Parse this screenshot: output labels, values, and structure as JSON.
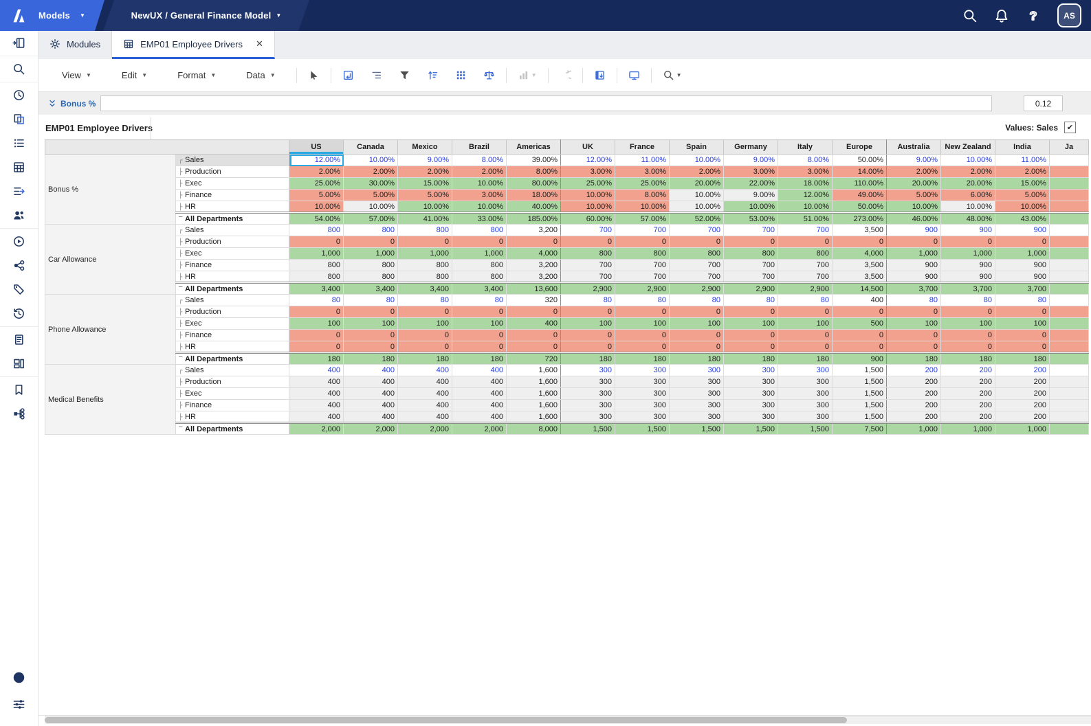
{
  "topbar": {
    "models_label": "Models",
    "model_name": "NewUX / General Finance Model",
    "icons": [
      "search",
      "notifications",
      "help"
    ],
    "avatar_initials": "AS"
  },
  "tabs": [
    {
      "label": "Modules",
      "icon": "gear",
      "active": false,
      "closable": false
    },
    {
      "label": "EMP01 Employee Drivers",
      "icon": "grid-table",
      "active": true,
      "closable": true
    }
  ],
  "sidebar": {
    "items": [
      {
        "name": "panel-toggle"
      },
      {
        "sep": true
      },
      {
        "name": "search"
      },
      {
        "sep": true
      },
      {
        "name": "recent"
      },
      {
        "name": "models"
      },
      {
        "name": "lists"
      },
      {
        "name": "modules"
      },
      {
        "name": "actions"
      },
      {
        "name": "users"
      },
      {
        "sep": true
      },
      {
        "name": "processes"
      },
      {
        "name": "source-models"
      },
      {
        "name": "tags"
      },
      {
        "name": "history"
      },
      {
        "sep": true
      },
      {
        "name": "notes"
      },
      {
        "name": "dashboards"
      },
      {
        "sep": true
      },
      {
        "name": "bookmarks"
      },
      {
        "name": "org-chart"
      }
    ],
    "bottom_items": [
      {
        "name": "info"
      },
      {
        "name": "settings-sliders"
      }
    ]
  },
  "toolbar": {
    "menus": [
      "View",
      "Edit",
      "Format",
      "Data"
    ],
    "tools": [
      {
        "name": "cursor",
        "tone": "dark"
      },
      {
        "sep": true
      },
      {
        "name": "pivot",
        "tone": "blue"
      },
      {
        "name": "outline",
        "tone": "slate"
      },
      {
        "name": "filter",
        "tone": "dark"
      },
      {
        "name": "sort",
        "tone": "blue"
      },
      {
        "name": "grid-cells",
        "tone": "blue"
      },
      {
        "name": "conditional-format",
        "tone": "blue"
      },
      {
        "sep": true
      },
      {
        "name": "chart",
        "tone": "disabled",
        "caret": true
      },
      {
        "sep": true
      },
      {
        "name": "undo",
        "tone": "disabled"
      },
      {
        "sep": true
      },
      {
        "name": "freeze-panes",
        "tone": "blue"
      },
      {
        "sep": true
      },
      {
        "name": "presentation",
        "tone": "blue"
      },
      {
        "sep": true
      },
      {
        "name": "search-grid",
        "tone": "dark",
        "caret": true
      }
    ]
  },
  "formula_bar": {
    "selector_label": "Bonus %",
    "input_value": "",
    "cell_value": "0.12"
  },
  "view": {
    "title": "EMP01 Employee Drivers",
    "values_label": "Values: Sales",
    "values_checked": "✔"
  },
  "grid": {
    "columns": [
      "US",
      "Canada",
      "Mexico",
      "Brazil",
      "Americas",
      "UK",
      "France",
      "Spain",
      "Germany",
      "Italy",
      "Europe",
      "Australia",
      "New Zealand",
      "India",
      "Ja"
    ],
    "selection": {
      "section": 0,
      "row": 0,
      "col": 0,
      "column": "US",
      "row_label": "Sales",
      "line_item": "Bonus %"
    },
    "sections": [
      {
        "group": "Bonus %",
        "rows": [
          {
            "label": "Sales",
            "values": [
              "12.00%",
              "10.00%",
              "9.00%",
              "8.00%",
              "39.00%",
              "12.00%",
              "11.00%",
              "10.00%",
              "9.00%",
              "8.00%",
              "50.00%",
              "9.00%",
              "10.00%",
              "11.00%",
              ""
            ],
            "bg": "wwwwwwwwwwwwwww",
            "fg": "bbbbkbbbbbkbbbk"
          },
          {
            "label": "Production",
            "values": [
              "2.00%",
              "2.00%",
              "2.00%",
              "2.00%",
              "8.00%",
              "3.00%",
              "3.00%",
              "2.00%",
              "3.00%",
              "3.00%",
              "14.00%",
              "2.00%",
              "2.00%",
              "2.00%",
              ""
            ],
            "bg": "rrrrrrrrrrrrrrr"
          },
          {
            "label": "Exec",
            "values": [
              "25.00%",
              "30.00%",
              "15.00%",
              "10.00%",
              "80.00%",
              "25.00%",
              "25.00%",
              "20.00%",
              "22.00%",
              "18.00%",
              "110.00%",
              "20.00%",
              "20.00%",
              "15.00%",
              ""
            ],
            "bg": "ggggggggggggggg"
          },
          {
            "label": "Finance",
            "values": [
              "5.00%",
              "5.00%",
              "5.00%",
              "3.00%",
              "18.00%",
              "10.00%",
              "8.00%",
              "10.00%",
              "9.00%",
              "12.00%",
              "49.00%",
              "5.00%",
              "6.00%",
              "5.00%",
              ""
            ],
            "bg": "rrrrrrreegrrrrr"
          },
          {
            "label": "HR",
            "values": [
              "10.00%",
              "10.00%",
              "10.00%",
              "10.00%",
              "40.00%",
              "10.00%",
              "10.00%",
              "10.00%",
              "10.00%",
              "10.00%",
              "50.00%",
              "10.00%",
              "10.00%",
              "10.00%",
              ""
            ],
            "bg": "regggrreggggerr"
          },
          {
            "label": "All Departments",
            "values": [
              "54.00%",
              "57.00%",
              "41.00%",
              "33.00%",
              "185.00%",
              "60.00%",
              "57.00%",
              "52.00%",
              "53.00%",
              "51.00%",
              "273.00%",
              "46.00%",
              "48.00%",
              "43.00%",
              ""
            ],
            "bg": "ggggggggggggggg"
          }
        ]
      },
      {
        "group": "Car Allowance",
        "rows": [
          {
            "label": "Sales",
            "values": [
              "800",
              "800",
              "800",
              "800",
              "3,200",
              "700",
              "700",
              "700",
              "700",
              "700",
              "3,500",
              "900",
              "900",
              "900",
              ""
            ],
            "bg": "wwwwwwwwwwwwwww",
            "fg": "bbbbkbbbbbkbbbk"
          },
          {
            "label": "Production",
            "values": [
              "0",
              "0",
              "0",
              "0",
              "0",
              "0",
              "0",
              "0",
              "0",
              "0",
              "0",
              "0",
              "0",
              "0",
              ""
            ],
            "bg": "rrrrrrrrrrrrrrr"
          },
          {
            "label": "Exec",
            "values": [
              "1,000",
              "1,000",
              "1,000",
              "1,000",
              "4,000",
              "800",
              "800",
              "800",
              "800",
              "800",
              "4,000",
              "1,000",
              "1,000",
              "1,000",
              ""
            ],
            "bg": "ggggggggggggggg"
          },
          {
            "label": "Finance",
            "values": [
              "800",
              "800",
              "800",
              "800",
              "3,200",
              "700",
              "700",
              "700",
              "700",
              "700",
              "3,500",
              "900",
              "900",
              "900",
              ""
            ],
            "bg": "eeeeeeeeeeeeeee"
          },
          {
            "label": "HR",
            "values": [
              "800",
              "800",
              "800",
              "800",
              "3,200",
              "700",
              "700",
              "700",
              "700",
              "700",
              "3,500",
              "900",
              "900",
              "900",
              ""
            ],
            "bg": "eeeeeeeeeeeeeee"
          },
          {
            "label": "All Departments",
            "values": [
              "3,400",
              "3,400",
              "3,400",
              "3,400",
              "13,600",
              "2,900",
              "2,900",
              "2,900",
              "2,900",
              "2,900",
              "14,500",
              "3,700",
              "3,700",
              "3,700",
              ""
            ],
            "bg": "ggggggggggggggg"
          }
        ]
      },
      {
        "group": "Phone Allowance",
        "rows": [
          {
            "label": "Sales",
            "values": [
              "80",
              "80",
              "80",
              "80",
              "320",
              "80",
              "80",
              "80",
              "80",
              "80",
              "400",
              "80",
              "80",
              "80",
              ""
            ],
            "bg": "wwwwwwwwwwwwwww",
            "fg": "bbbbkbbbbbkbbbk"
          },
          {
            "label": "Production",
            "values": [
              "0",
              "0",
              "0",
              "0",
              "0",
              "0",
              "0",
              "0",
              "0",
              "0",
              "0",
              "0",
              "0",
              "0",
              ""
            ],
            "bg": "rrrrrrrrrrrrrrr"
          },
          {
            "label": "Exec",
            "values": [
              "100",
              "100",
              "100",
              "100",
              "400",
              "100",
              "100",
              "100",
              "100",
              "100",
              "500",
              "100",
              "100",
              "100",
              ""
            ],
            "bg": "ggggggggggggggg"
          },
          {
            "label": "Finance",
            "values": [
              "0",
              "0",
              "0",
              "0",
              "0",
              "0",
              "0",
              "0",
              "0",
              "0",
              "0",
              "0",
              "0",
              "0",
              ""
            ],
            "bg": "rrrrrrrrrrrrrrr"
          },
          {
            "label": "HR",
            "values": [
              "0",
              "0",
              "0",
              "0",
              "0",
              "0",
              "0",
              "0",
              "0",
              "0",
              "0",
              "0",
              "0",
              "0",
              ""
            ],
            "bg": "rrrrrrrrrrrrrrr"
          },
          {
            "label": "All Departments",
            "values": [
              "180",
              "180",
              "180",
              "180",
              "720",
              "180",
              "180",
              "180",
              "180",
              "180",
              "900",
              "180",
              "180",
              "180",
              ""
            ],
            "bg": "ggggggggggggggg"
          }
        ]
      },
      {
        "group": "Medical Benefits",
        "rows": [
          {
            "label": "Sales",
            "values": [
              "400",
              "400",
              "400",
              "400",
              "1,600",
              "300",
              "300",
              "300",
              "300",
              "300",
              "1,500",
              "200",
              "200",
              "200",
              ""
            ],
            "bg": "wwwwwwwwwwwwwww",
            "fg": "bbbbkbbbbbkbbbk"
          },
          {
            "label": "Production",
            "values": [
              "400",
              "400",
              "400",
              "400",
              "1,600",
              "300",
              "300",
              "300",
              "300",
              "300",
              "1,500",
              "200",
              "200",
              "200",
              ""
            ],
            "bg": "eeeeeeeeeeeeeee"
          },
          {
            "label": "Exec",
            "values": [
              "400",
              "400",
              "400",
              "400",
              "1,600",
              "300",
              "300",
              "300",
              "300",
              "300",
              "1,500",
              "200",
              "200",
              "200",
              ""
            ],
            "bg": "eeeeeeeeeeeeeee"
          },
          {
            "label": "Finance",
            "values": [
              "400",
              "400",
              "400",
              "400",
              "1,600",
              "300",
              "300",
              "300",
              "300",
              "300",
              "1,500",
              "200",
              "200",
              "200",
              ""
            ],
            "bg": "eeeeeeeeeeeeeee"
          },
          {
            "label": "HR",
            "values": [
              "400",
              "400",
              "400",
              "400",
              "1,600",
              "300",
              "300",
              "300",
              "300",
              "300",
              "1,500",
              "200",
              "200",
              "200",
              ""
            ],
            "bg": "eeeeeeeeeeeeeee"
          },
          {
            "label": "All Departments",
            "values": [
              "2,000",
              "2,000",
              "2,000",
              "2,000",
              "8,000",
              "1,500",
              "1,500",
              "1,500",
              "1,500",
              "1,500",
              "7,500",
              "1,000",
              "1,000",
              "1,000",
              ""
            ],
            "bg": "ggggggggggggggg"
          }
        ]
      }
    ]
  },
  "colors": {
    "accent_blue": "#3A66DB",
    "topbar_navy": "#16295B",
    "selection_cyan": "#2BA9E2",
    "cell_red": "#F1A18D",
    "cell_green": "#ABD7A2",
    "cell_gray": "#EFEFEF",
    "editable_text_blue": "#2139E0"
  }
}
